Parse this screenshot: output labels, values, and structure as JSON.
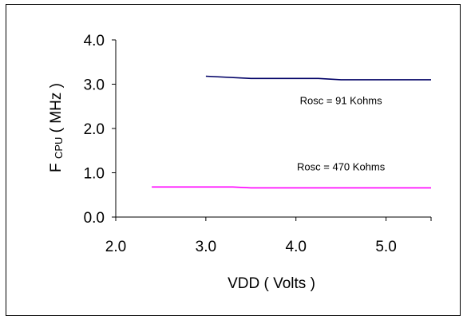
{
  "chart_data": {
    "type": "line",
    "title": "",
    "xlabel": "VDD ( Volts )",
    "ylabel": {
      "main": "F",
      "subscript": "CPU",
      "units": "( MHz )"
    },
    "xlim": [
      2.0,
      5.5
    ],
    "ylim": [
      0.0,
      4.0
    ],
    "xticks": [
      "2.0",
      "3.0",
      "4.0",
      "5.0"
    ],
    "xtick_values": [
      2.0,
      3.0,
      4.0,
      5.0
    ],
    "yticks": [
      "0.0",
      "1.0",
      "2.0",
      "3.0",
      "4.0"
    ],
    "ytick_values": [
      0.0,
      1.0,
      2.0,
      3.0,
      4.0
    ],
    "grid": false,
    "legend": "none",
    "series": [
      {
        "color": "#000066",
        "x": [
          3.0,
          3.5,
          4.25,
          4.5,
          5.5
        ],
        "y": [
          3.18,
          3.13,
          3.13,
          3.1,
          3.1
        ]
      },
      {
        "color": "#ff00ff",
        "x": [
          2.4,
          3.3,
          3.5,
          5.5
        ],
        "y": [
          0.68,
          0.68,
          0.66,
          0.66
        ]
      }
    ],
    "annotations": [
      {
        "text": "Rosc = 91 Kohms",
        "x": 4.5,
        "y": 2.55
      },
      {
        "text": "Rosc = 470 Kohms",
        "x": 4.5,
        "y": 1.05
      }
    ]
  }
}
